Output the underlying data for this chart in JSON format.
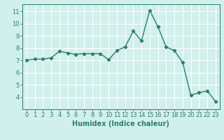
{
  "x": [
    0,
    1,
    2,
    3,
    4,
    5,
    6,
    7,
    8,
    9,
    10,
    11,
    12,
    13,
    14,
    15,
    16,
    17,
    18,
    19,
    20,
    21,
    22,
    23
  ],
  "y": [
    7.0,
    7.1,
    7.1,
    7.2,
    7.75,
    7.6,
    7.5,
    7.55,
    7.55,
    7.55,
    7.05,
    7.8,
    8.1,
    9.4,
    8.6,
    11.1,
    9.75,
    8.1,
    7.8,
    6.85,
    4.15,
    4.35,
    4.5,
    3.65
  ],
  "line_color": "#2e7d6e",
  "marker": "D",
  "marker_size": 2.2,
  "linewidth": 1.0,
  "xlabel": "Humidex (Indice chaleur)",
  "xlim": [
    -0.5,
    23.5
  ],
  "ylim": [
    3.0,
    11.6
  ],
  "yticks": [
    4,
    5,
    6,
    7,
    8,
    9,
    10,
    11
  ],
  "xticks": [
    0,
    1,
    2,
    3,
    4,
    5,
    6,
    7,
    8,
    9,
    10,
    11,
    12,
    13,
    14,
    15,
    16,
    17,
    18,
    19,
    20,
    21,
    22,
    23
  ],
  "background_color": "#cff0eb",
  "grid_color": "#ffffff",
  "tick_color": "#2e7d6e",
  "label_color": "#2e7d6e",
  "xlabel_fontsize": 7,
  "tick_fontsize": 6
}
